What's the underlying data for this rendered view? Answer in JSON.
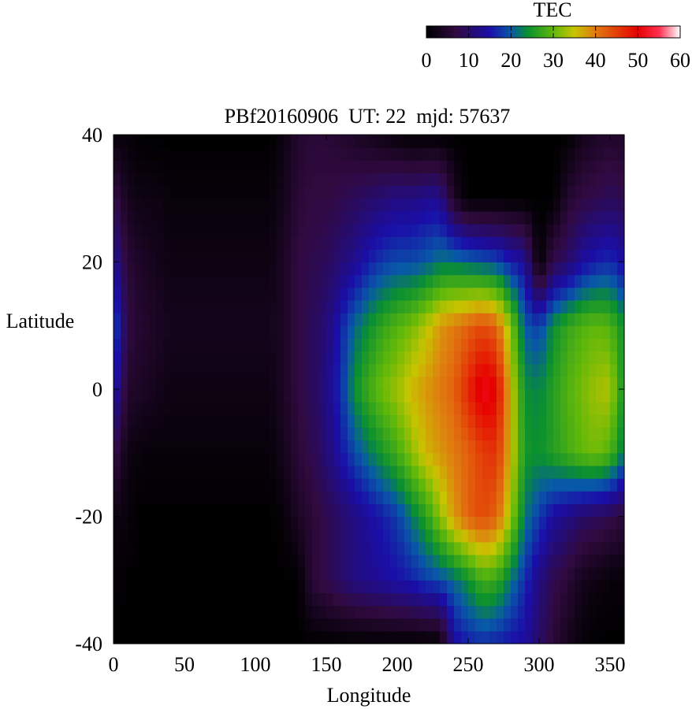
{
  "chart_data": {
    "type": "heatmap",
    "title": "PBf20160906  UT: 22  mjd: 57637",
    "xlabel": "Longitude",
    "ylabel": "Latitude",
    "xlim": [
      0,
      360
    ],
    "ylim": [
      -40,
      40
    ],
    "x_ticks": [
      "0",
      "50",
      "100",
      "150",
      "200",
      "250",
      "300",
      "350"
    ],
    "y_ticks": [
      "-40",
      "-20",
      "0",
      "20",
      "40"
    ],
    "x_tick_values": [
      0,
      50,
      100,
      150,
      200,
      250,
      300,
      350
    ],
    "y_tick_values": [
      -40,
      -20,
      0,
      20,
      40
    ],
    "grid": false,
    "colorbar": {
      "label": "TEC",
      "range": [
        0,
        60
      ],
      "ticks": [
        "0",
        "10",
        "20",
        "30",
        "40",
        "50",
        "60"
      ],
      "tick_values": [
        0,
        10,
        20,
        30,
        40,
        50,
        60
      ],
      "stops": [
        {
          "value": 0,
          "color": "#000000"
        },
        {
          "value": 7,
          "color": "#300a40"
        },
        {
          "value": 15,
          "color": "#1a0ea8"
        },
        {
          "value": 20,
          "color": "#0858a8"
        },
        {
          "value": 24,
          "color": "#0a9030"
        },
        {
          "value": 30,
          "color": "#60b80a"
        },
        {
          "value": 35,
          "color": "#c8c400"
        },
        {
          "value": 40,
          "color": "#e07a10"
        },
        {
          "value": 50,
          "color": "#e60000"
        },
        {
          "value": 55,
          "color": "#ff3050"
        },
        {
          "value": 60,
          "color": "#ffffff"
        }
      ]
    },
    "x": [
      0,
      10,
      20,
      30,
      40,
      50,
      60,
      70,
      80,
      90,
      100,
      110,
      120,
      130,
      140,
      150,
      160,
      170,
      180,
      190,
      200,
      210,
      220,
      230,
      240,
      250,
      260,
      270,
      280,
      290,
      300,
      310,
      320,
      330,
      340,
      350,
      360
    ],
    "y": [
      40,
      30,
      20,
      10,
      0,
      -10,
      -20,
      -30,
      -40
    ],
    "z": [
      [
        1,
        1,
        0,
        0,
        0,
        0,
        0,
        0,
        0,
        0,
        0,
        0,
        2,
        5,
        6,
        6,
        5,
        4,
        3,
        2,
        1,
        0,
        0,
        0,
        0,
        0,
        0,
        0,
        0,
        0,
        0,
        0,
        0,
        3,
        4,
        5,
        4
      ],
      [
        8,
        3,
        2,
        2,
        1,
        1,
        1,
        1,
        1,
        1,
        1,
        1,
        3,
        6,
        7,
        7,
        8,
        9,
        10,
        11,
        12,
        12,
        13,
        13,
        4,
        0,
        0,
        0,
        0,
        0,
        0,
        0,
        5,
        7,
        8,
        9,
        8
      ],
      [
        14,
        6,
        4,
        3,
        2,
        2,
        2,
        2,
        2,
        2,
        2,
        2,
        4,
        7,
        8,
        9,
        11,
        13,
        16,
        18,
        19,
        19,
        20,
        22,
        22,
        21,
        20,
        19,
        16,
        14,
        0,
        8,
        10,
        14,
        16,
        17,
        14
      ],
      [
        20,
        7,
        5,
        4,
        3,
        3,
        3,
        3,
        3,
        3,
        3,
        3,
        4,
        7,
        9,
        11,
        16,
        21,
        24,
        27,
        29,
        31,
        34,
        38,
        40,
        42,
        44,
        42,
        32,
        20,
        18,
        24,
        27,
        29,
        30,
        29,
        24
      ],
      [
        16,
        5,
        4,
        3,
        2,
        2,
        2,
        2,
        2,
        2,
        2,
        2,
        4,
        7,
        9,
        12,
        17,
        24,
        28,
        31,
        33,
        36,
        38,
        40,
        42,
        47,
        52,
        50,
        36,
        24,
        23,
        26,
        29,
        31,
        33,
        34,
        24
      ],
      [
        8,
        2,
        1,
        1,
        1,
        1,
        1,
        1,
        1,
        1,
        1,
        1,
        3,
        6,
        8,
        11,
        15,
        19,
        22,
        25,
        28,
        32,
        36,
        38,
        40,
        42,
        45,
        46,
        36,
        25,
        24,
        26,
        28,
        30,
        31,
        29,
        22
      ],
      [
        2,
        1,
        0,
        0,
        0,
        0,
        0,
        0,
        0,
        0,
        0,
        0,
        1,
        4,
        6,
        8,
        10,
        12,
        14,
        16,
        18,
        22,
        26,
        32,
        38,
        42,
        44,
        42,
        33,
        22,
        18,
        14,
        12,
        10,
        9,
        8,
        6
      ],
      [
        1,
        0,
        0,
        0,
        0,
        0,
        0,
        0,
        0,
        0,
        0,
        0,
        0,
        0,
        6,
        8,
        10,
        12,
        13,
        14,
        15,
        16,
        18,
        19,
        21,
        24,
        28,
        27,
        22,
        17,
        12,
        8,
        6,
        3,
        2,
        1,
        1
      ],
      [
        0,
        0,
        0,
        0,
        0,
        0,
        0,
        0,
        0,
        0,
        0,
        0,
        0,
        0,
        0,
        0,
        0,
        0,
        0,
        0,
        0,
        0,
        0,
        0,
        14,
        16,
        17,
        16,
        15,
        14,
        10,
        6,
        3,
        1,
        0,
        0,
        0
      ]
    ]
  }
}
